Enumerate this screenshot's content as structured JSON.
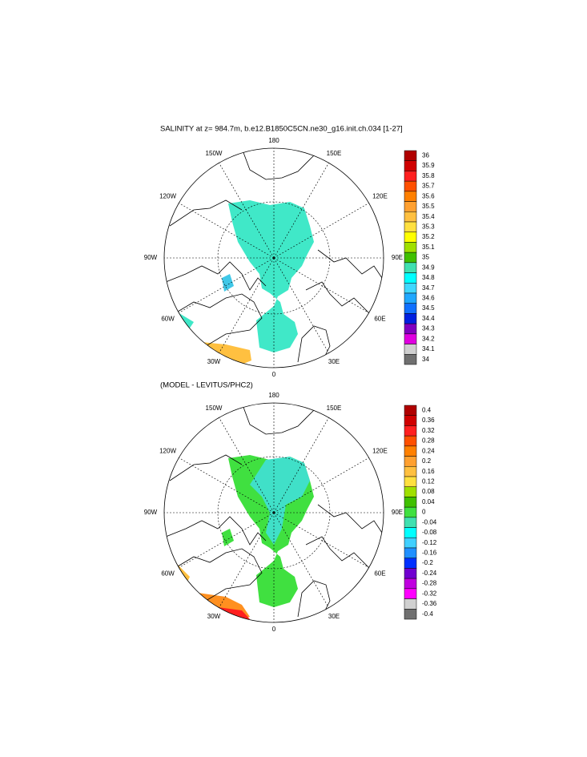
{
  "maps": [
    {
      "title": "SALINITY at z= 984.7m, b.e12.B1850C5CN.ne30_g16.init.ch.034 [1-27]",
      "lon_labels": [
        "180",
        "150E",
        "120E",
        "90E",
        "60E",
        "30E",
        "0",
        "30W",
        "60W",
        "90W",
        "120W",
        "150W"
      ],
      "colorbar": {
        "levels": [
          36,
          35.9,
          35.8,
          35.7,
          35.6,
          35.5,
          35.4,
          35.3,
          35.2,
          35.1,
          35,
          34.9,
          34.8,
          34.7,
          34.6,
          34.5,
          34.4,
          34.3,
          34.2,
          34.1,
          34
        ],
        "colors": [
          "#b00000",
          "#d00000",
          "#ff2020",
          "#ff5000",
          "#ff8000",
          "#ffa030",
          "#ffc040",
          "#ffe040",
          "#ffff00",
          "#a0e000",
          "#40c000",
          "#40e0b0",
          "#00ffff",
          "#40d8ff",
          "#20a8ff",
          "#1070ff",
          "#0020e0",
          "#8000c0",
          "#e000e0",
          "#d0d0d0",
          "#707070"
        ]
      }
    },
    {
      "title": "(MODEL - LEVITUS/PHC2)",
      "lon_labels": [
        "180",
        "150E",
        "120E",
        "90E",
        "60E",
        "30E",
        "0",
        "30W",
        "60W",
        "90W",
        "120W",
        "150W"
      ],
      "colorbar": {
        "levels": [
          0.4,
          0.36,
          0.32,
          0.28,
          0.24,
          0.2,
          0.16,
          0.12,
          0.08,
          0.04,
          0,
          -0.04,
          -0.08,
          -0.12,
          -0.16,
          -0.2,
          -0.24,
          -0.28,
          -0.32,
          -0.36,
          -0.4
        ],
        "colors": [
          "#b00000",
          "#d00000",
          "#ff2020",
          "#ff5000",
          "#ff8000",
          "#ffa030",
          "#ffc040",
          "#ffe040",
          "#a0e000",
          "#40c000",
          "#40e040",
          "#40e0b0",
          "#00ffff",
          "#40d0ff",
          "#2090ff",
          "#0030ff",
          "#7000d0",
          "#c000e0",
          "#ff00ff",
          "#d0d0d0",
          "#707070"
        ]
      }
    }
  ]
}
